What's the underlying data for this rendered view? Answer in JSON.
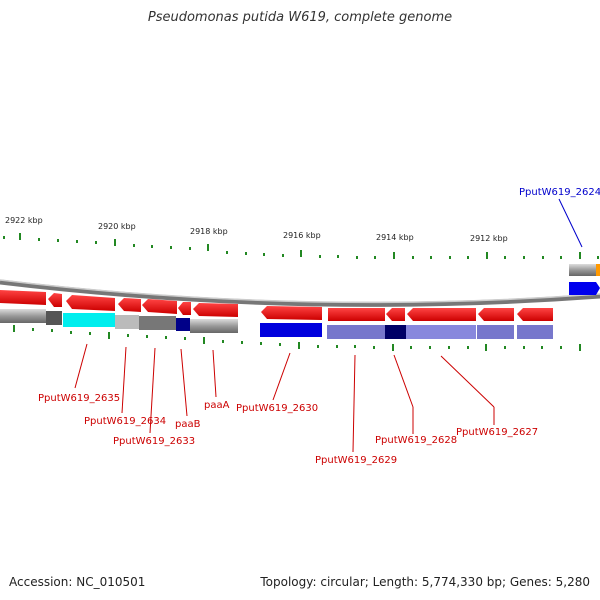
{
  "title": "Pseudomonas putida W619, complete genome",
  "footer": {
    "accession": "Accession: NC_010501",
    "summary": "Topology: circular; Length: 5,774,330 bp; Genes: 5,280"
  },
  "colors": {
    "red_gene": "#ff0000",
    "blue_gene": "#0000ff",
    "label_red": "#cc0000",
    "label_blue": "#0000cc",
    "tick_green": "#228822",
    "backbone": "#888888"
  },
  "scale_labels": [
    "2922 kbp",
    "2920 kbp",
    "2918 kbp",
    "2916 kbp",
    "2914 kbp",
    "2912 kbp"
  ],
  "gene_labels": [
    {
      "id": "PputW619_2624",
      "color": "blue"
    },
    {
      "id": "PputW619_2635",
      "color": "red"
    },
    {
      "id": "PputW619_2634",
      "color": "red"
    },
    {
      "id": "PputW619_2633",
      "color": "red"
    },
    {
      "id": "paaB",
      "color": "red"
    },
    {
      "id": "paaA",
      "color": "red"
    },
    {
      "id": "PputW619_2630",
      "color": "red"
    },
    {
      "id": "PputW619_2629",
      "color": "red"
    },
    {
      "id": "PputW619_2628",
      "color": "red"
    },
    {
      "id": "PputW619_2627",
      "color": "red"
    }
  ]
}
